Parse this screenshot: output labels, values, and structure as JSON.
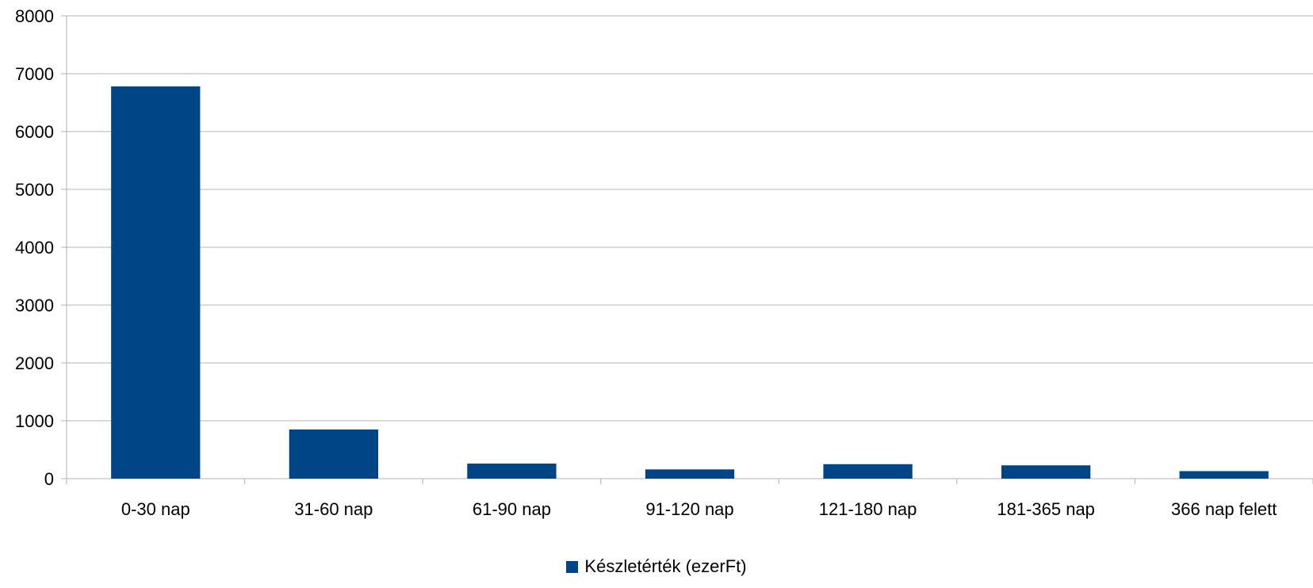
{
  "chart_data": {
    "type": "bar",
    "categories": [
      "0-30 nap",
      "31-60 nap",
      "61-90 nap",
      "91-120 nap",
      "121-180 nap",
      "181-365 nap",
      "366 nap felett"
    ],
    "series": [
      {
        "name": "Készletérték (ezerFt)",
        "values": [
          6780,
          850,
          260,
          160,
          250,
          230,
          130
        ],
        "color": "#004586"
      }
    ],
    "ylim": [
      0,
      8000
    ],
    "yticks": [
      0,
      1000,
      2000,
      3000,
      4000,
      5000,
      6000,
      7000,
      8000
    ],
    "grid": true,
    "legend_position": "bottom-center",
    "title": "",
    "xlabel": "",
    "ylabel": ""
  }
}
